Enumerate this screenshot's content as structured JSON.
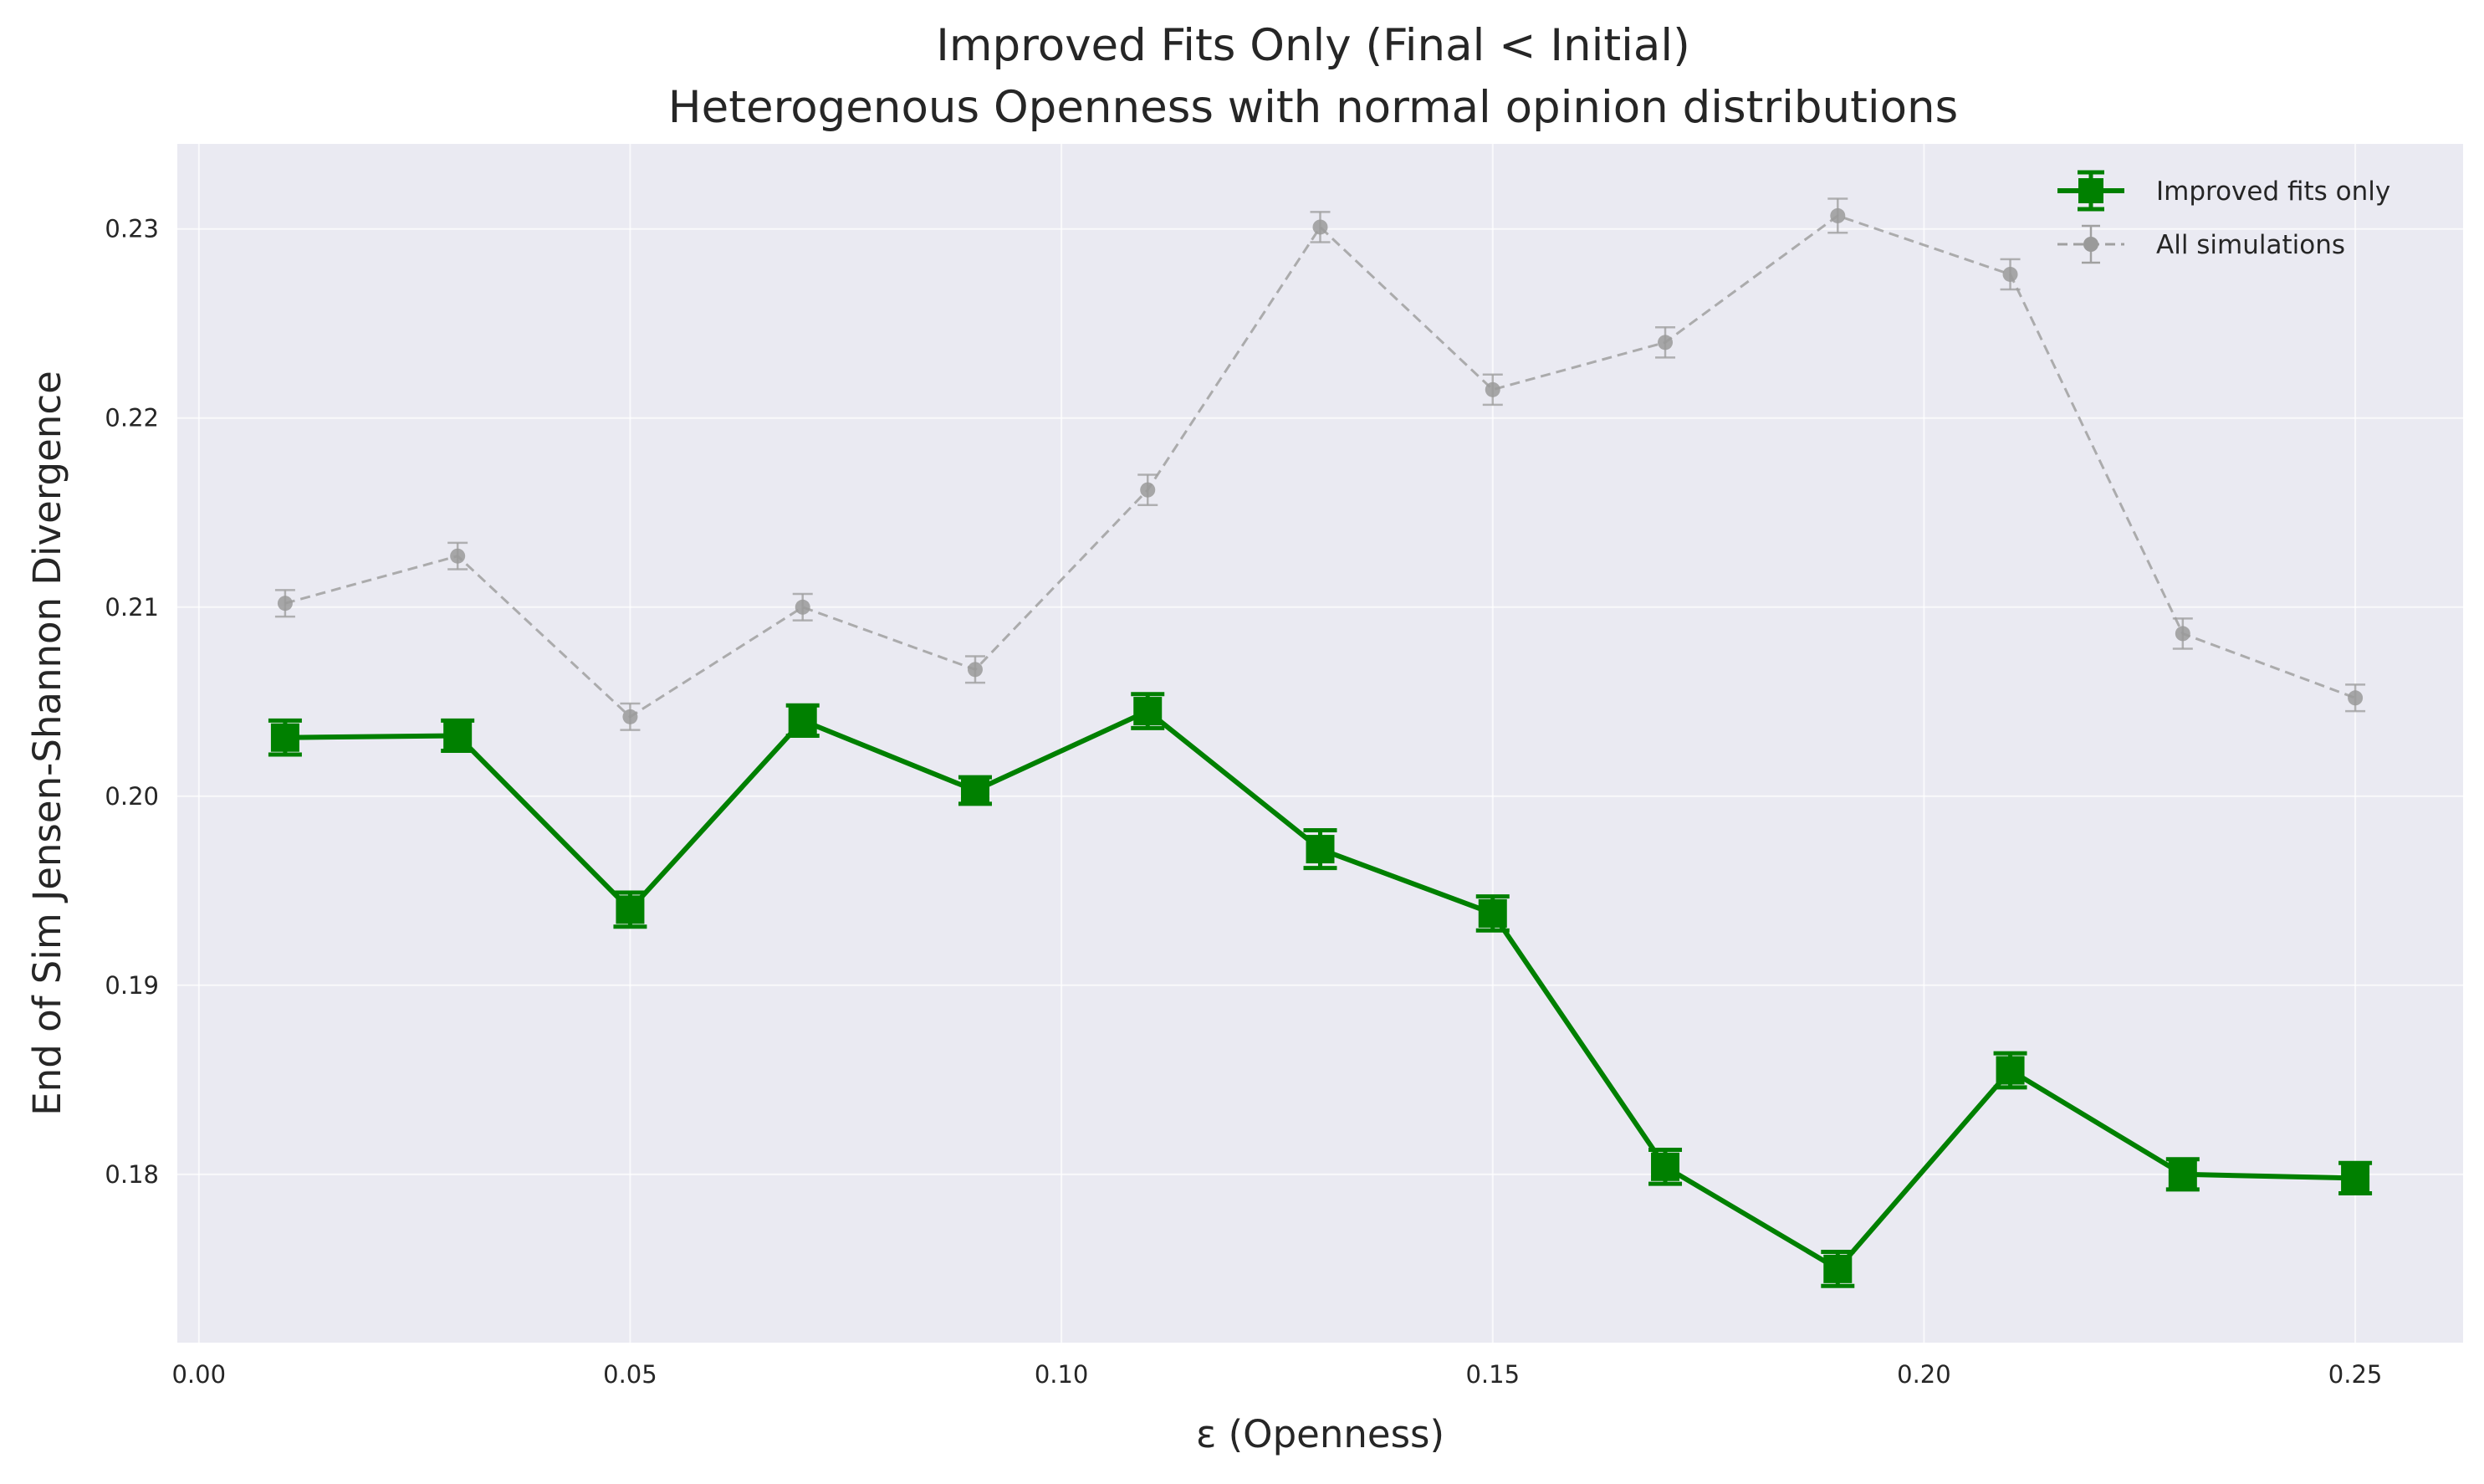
{
  "chart_data": {
    "type": "line",
    "title": "Improved Fits Only (Final < Initial)",
    "subtitle": "Heterogenous Openness with normal opinion distributions",
    "xlabel": "ε (Openness)",
    "ylabel": "End of Sim Jensen-Shannon Divergence",
    "xlim": [
      -0.0025,
      0.2625
    ],
    "ylim": [
      0.1711,
      0.2345
    ],
    "xticks": [
      "0.00",
      "0.05",
      "0.10",
      "0.15",
      "0.20",
      "0.25"
    ],
    "yticks": [
      "0.18",
      "0.19",
      "0.20",
      "0.21",
      "0.22",
      "0.23"
    ],
    "grid": true,
    "legend_position": "top-right",
    "x": [
      0.01,
      0.03,
      0.05,
      0.07,
      0.09,
      0.11,
      0.13,
      0.15,
      0.17,
      0.19,
      0.21,
      0.23,
      0.25
    ],
    "series": [
      {
        "name": "Improved fits only",
        "color": "#008000",
        "style": "solid",
        "marker": "square",
        "values": [
          0.2031,
          0.2032,
          0.194,
          0.204,
          0.2003,
          0.2045,
          0.1972,
          0.1938,
          0.1804,
          0.175,
          0.1855,
          0.18,
          0.1798
        ],
        "errors": [
          0.0009,
          0.0008,
          0.0009,
          0.0008,
          0.0007,
          0.0009,
          0.001,
          0.0009,
          0.0009,
          0.0009,
          0.0009,
          0.0008,
          0.0008
        ]
      },
      {
        "name": "All simulations",
        "color": "#a0a0a0",
        "style": "dashed",
        "marker": "circle",
        "values": [
          0.2102,
          0.2127,
          0.2042,
          0.21,
          0.2067,
          0.2162,
          0.2301,
          0.2215,
          0.224,
          0.2307,
          0.2276,
          0.2086,
          0.2052
        ],
        "errors": [
          0.0007,
          0.0007,
          0.0007,
          0.0007,
          0.0007,
          0.0008,
          0.0008,
          0.0008,
          0.0008,
          0.0009,
          0.0008,
          0.0008,
          0.0007
        ]
      }
    ]
  }
}
